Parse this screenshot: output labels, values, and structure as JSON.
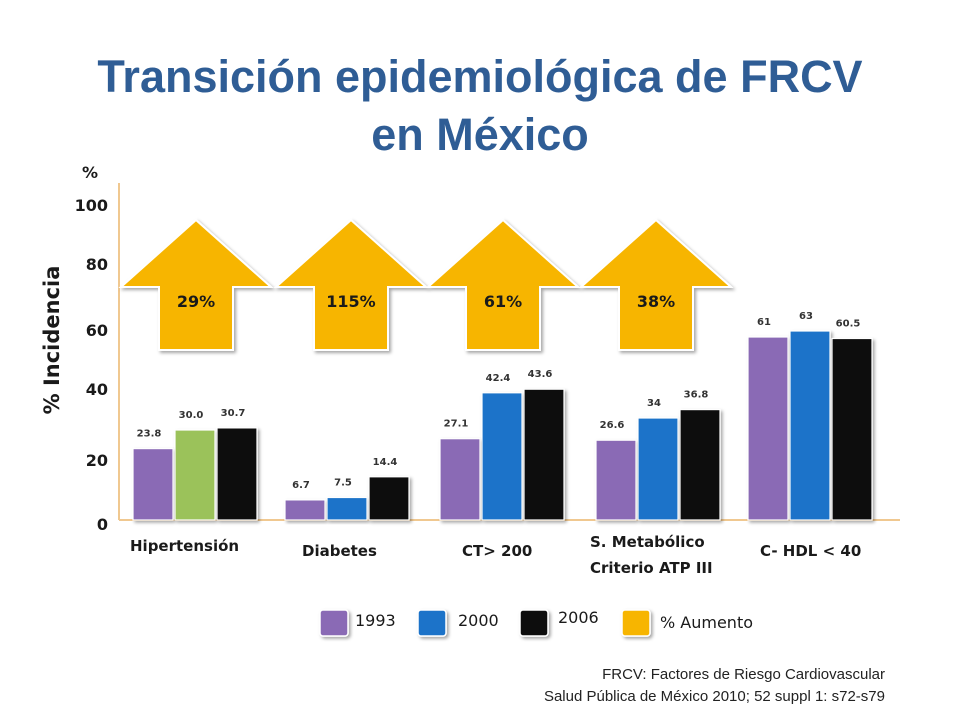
{
  "chart_data": {
    "type": "bar",
    "title": "Transición epidemiológica de FRCV en México",
    "title_lines": [
      "Transición epidemiológica de FRCV",
      "en México"
    ],
    "ylabel": "% Incidencia",
    "yunit": "%",
    "ylim": [
      0,
      100
    ],
    "yticks": [
      0,
      20,
      40,
      60,
      80,
      100
    ],
    "categories": [
      [
        "Hipertensión"
      ],
      [
        "Diabetes"
      ],
      [
        "CT> 200"
      ],
      [
        "S. Metabólico",
        "Criterio ATP III"
      ],
      [
        "C- HDL < 40"
      ]
    ],
    "series": [
      {
        "name": "1993",
        "color": "#8A6BB5",
        "values": [
          23.8,
          6.7,
          27.1,
          26.6,
          61
        ],
        "labels": [
          "23.8",
          "6.7",
          "27.1",
          "26.6",
          "61"
        ]
      },
      {
        "name": "2000",
        "color": "#1A73C9",
        "values": [
          30.0,
          7.5,
          42.4,
          34,
          63
        ],
        "labels": [
          "30.0",
          "7.5",
          "42.4",
          "34",
          "63"
        ]
      },
      {
        "name": "2006",
        "color": "#111111",
        "values": [
          30.7,
          14.4,
          43.6,
          36.8,
          60.5
        ],
        "labels": [
          "30.7",
          "14.4",
          "43.6",
          "36.8",
          "60.5"
        ]
      }
    ],
    "highlight": {
      "category_index": 0,
      "series_index": 1,
      "color": "#9BC25A"
    },
    "increase_arrows": {
      "color": "#F7B500",
      "labels": [
        "29%",
        "115%",
        "61%",
        "38%"
      ],
      "legend_label": "% Aumento"
    },
    "legend": {
      "position": "bottom",
      "items": [
        "1993",
        "2000",
        "2006"
      ]
    },
    "grid": false
  },
  "footnote": {
    "line1": "FRCV: Factores de Riesgo Cardiovascular",
    "line2": "Salud Pública de México 2010; 52 suppl 1: s72-s79"
  }
}
